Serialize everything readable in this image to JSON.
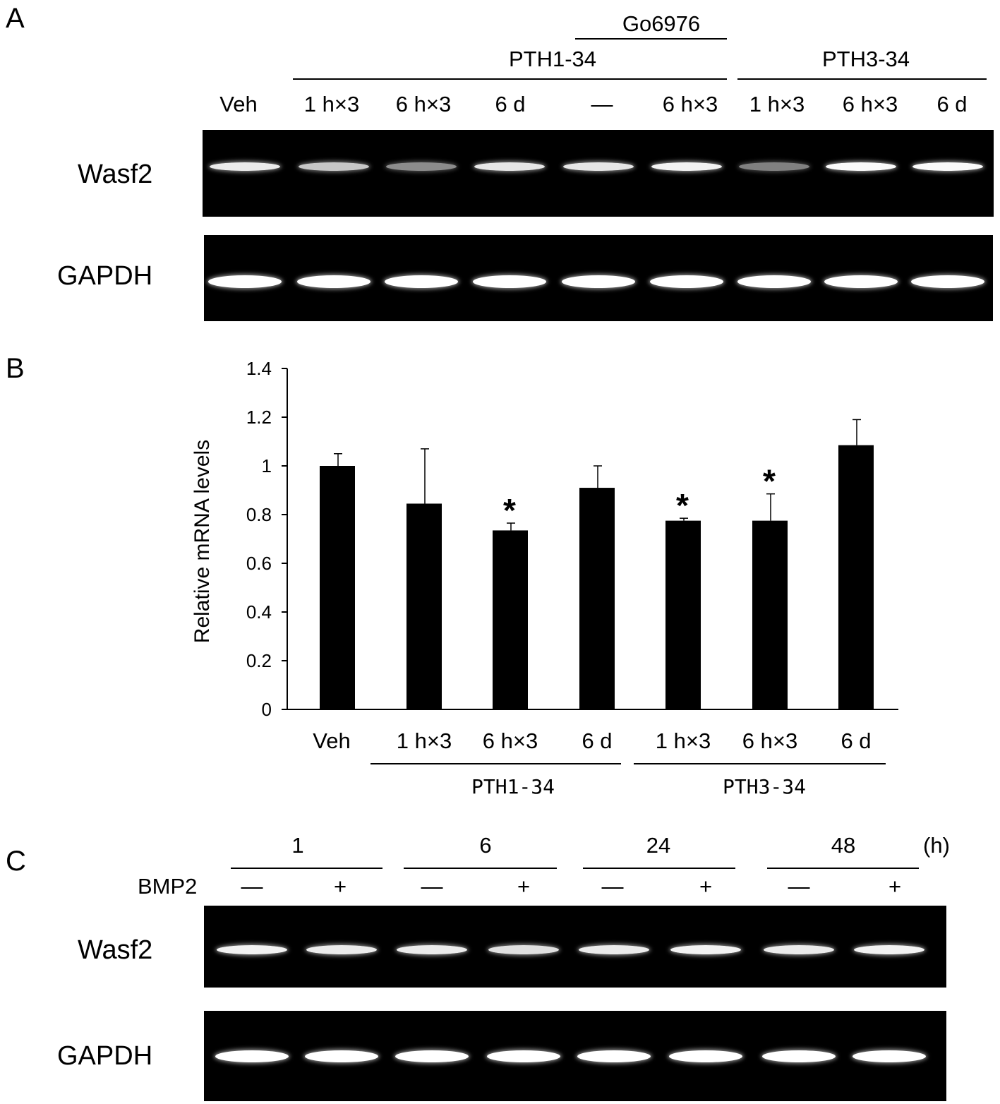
{
  "panel_a": {
    "letter": "A",
    "go6976": "Go6976",
    "pth134": "PTH1-34",
    "pth334": "PTH3-34",
    "lanes": [
      "Veh",
      "1 h×3",
      "6 h×3",
      "6 d",
      "—",
      "6 h×3",
      "1 h×3",
      "6 h×3",
      "6 d"
    ],
    "gel1_label": "Wasf2",
    "gel2_label": "GAPDH",
    "wasf2_band_intensity": [
      0.92,
      0.78,
      0.55,
      0.9,
      0.9,
      0.95,
      0.5,
      0.98,
      0.98
    ],
    "gapdh_band_intensity": [
      1,
      1,
      1,
      1,
      1,
      1,
      1,
      1,
      1
    ]
  },
  "panel_b": {
    "letter": "B",
    "pth134": "PTH1-34",
    "pth334": "PTH3-34",
    "significance_marker": "*"
  },
  "chart_data": {
    "type": "bar",
    "categories": [
      "Veh",
      "1 h×3",
      "6 h×3",
      "6 d",
      "1 h×3",
      "6 h×3",
      "6 d"
    ],
    "values": [
      1.0,
      0.845,
      0.735,
      0.91,
      0.775,
      0.775,
      1.085
    ],
    "errors": [
      0.05,
      0.225,
      0.03,
      0.09,
      0.01,
      0.11,
      0.105
    ],
    "significant": [
      false,
      false,
      true,
      false,
      true,
      true,
      false
    ],
    "ylabel": "Relative mRNA levels",
    "ylim": [
      0,
      1.4
    ],
    "yticks": [
      "0",
      "0.2",
      "0.4",
      "0.6",
      "0.8",
      "1",
      "1.2",
      "1.4"
    ],
    "bar_color": "#000000",
    "grid": false
  },
  "panel_c": {
    "letter": "C",
    "times": [
      "1",
      "6",
      "24",
      "48"
    ],
    "unit": "(h)",
    "bmp2_label": "BMP2",
    "signs": [
      "—",
      "+",
      "—",
      "+",
      "—",
      "+",
      "—",
      "+"
    ],
    "gel1_label": "Wasf2",
    "gel2_label": "GAPDH",
    "wasf2_band_intensity": [
      0.95,
      0.92,
      0.92,
      0.88,
      0.92,
      0.95,
      0.92,
      0.95
    ],
    "gapdh_band_intensity": [
      1,
      1,
      1,
      1,
      1,
      1,
      1,
      1
    ]
  }
}
